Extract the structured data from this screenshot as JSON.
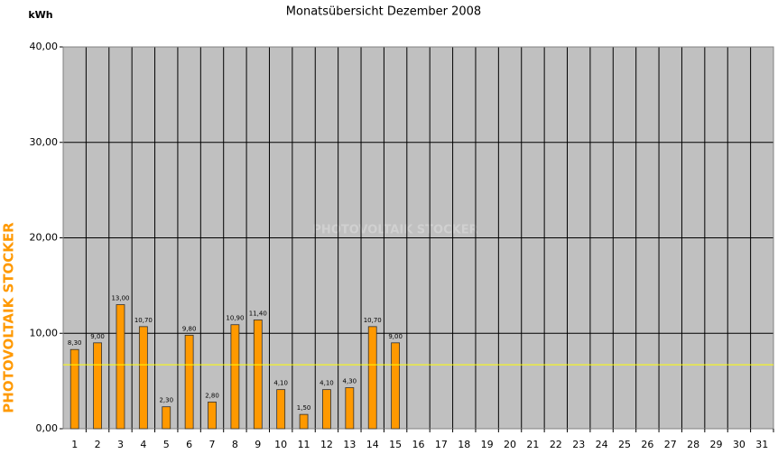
{
  "chart_data": {
    "type": "bar",
    "title": "Monatsübersicht Dezember 2008",
    "y_axis_label": "kWh",
    "watermark": "PHOTOVOLTAIK STOCKER",
    "side_label": "PHOTOVOLTAIK STOCKER",
    "categories": [
      "1",
      "2",
      "3",
      "4",
      "5",
      "6",
      "7",
      "8",
      "9",
      "10",
      "11",
      "12",
      "13",
      "14",
      "15",
      "16",
      "17",
      "18",
      "19",
      "20",
      "21",
      "22",
      "23",
      "24",
      "25",
      "26",
      "27",
      "28",
      "29",
      "30",
      "31"
    ],
    "values": [
      8.3,
      9.0,
      13.0,
      10.7,
      2.3,
      9.8,
      2.8,
      10.9,
      11.4,
      4.1,
      1.5,
      4.1,
      4.3,
      10.7,
      9.0,
      null,
      null,
      null,
      null,
      null,
      null,
      null,
      null,
      null,
      null,
      null,
      null,
      null,
      null,
      null,
      null
    ],
    "value_labels": [
      "8,30",
      "9,00",
      "13,00",
      "10,70",
      "2,30",
      "9,80",
      "2,80",
      "10,90",
      "11,40",
      "4,10",
      "1,50",
      "4,10",
      "4,30",
      "10,70",
      "9,00",
      null,
      null,
      null,
      null,
      null,
      null,
      null,
      null,
      null,
      null,
      null,
      null,
      null,
      null,
      null,
      null
    ],
    "color": "#ff9900",
    "reference_line": {
      "value": 6.7,
      "color": "#ffff00"
    },
    "ylim": [
      0,
      40
    ],
    "yticks": [
      {
        "value": 0,
        "label": "0,00"
      },
      {
        "value": 10,
        "label": "10,00"
      },
      {
        "value": 20,
        "label": "20,00"
      },
      {
        "value": 30,
        "label": "30,00"
      },
      {
        "value": 40,
        "label": "40,00"
      }
    ],
    "grid": true
  }
}
